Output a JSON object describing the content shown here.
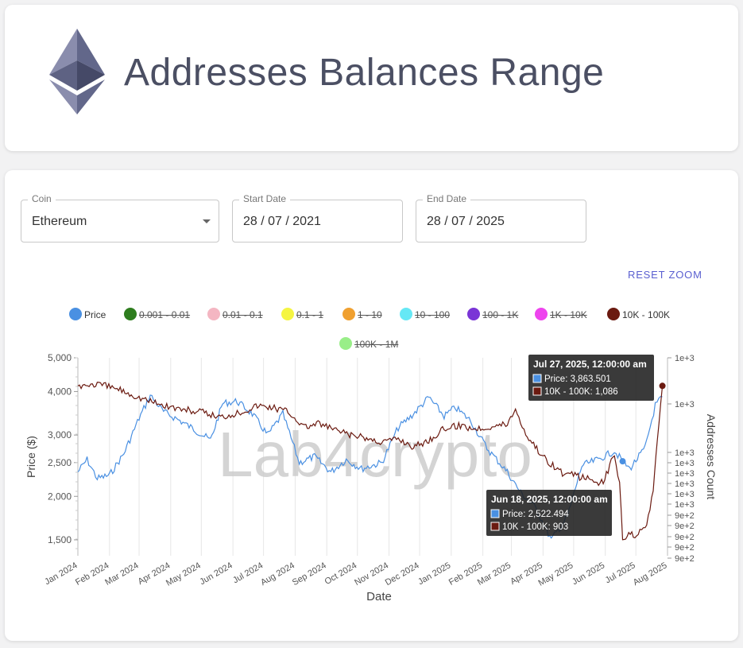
{
  "header": {
    "title": "Addresses Balances Range",
    "logo_icon": "ethereum-logo-icon"
  },
  "filters": {
    "coin": {
      "label": "Coin",
      "value": "Ethereum"
    },
    "start_date": {
      "label": "Start Date",
      "value": "28 / 07 / 2021"
    },
    "end_date": {
      "label": "End Date",
      "value": "28 / 07 / 2025"
    }
  },
  "reset_zoom_label": "RESET ZOOM",
  "watermark": "Lab4crypto",
  "legend": [
    {
      "label": "Price",
      "color": "#4a90e2",
      "active": true
    },
    {
      "label": "0.001 - 0.01",
      "color": "#2e7d1e",
      "active": false
    },
    {
      "label": "0.01 - 0.1",
      "color": "#f4b6c2",
      "active": false
    },
    {
      "label": "0.1 - 1",
      "color": "#f5f542",
      "active": false
    },
    {
      "label": "1 - 10",
      "color": "#f0a030",
      "active": false
    },
    {
      "label": "10 - 100",
      "color": "#66e8f5",
      "active": false
    },
    {
      "label": "100 - 1K",
      "color": "#7a35d6",
      "active": false
    },
    {
      "label": "1K - 10K",
      "color": "#ee44ee",
      "active": false
    },
    {
      "label": "10K - 100K",
      "color": "#6b1a10",
      "active": true
    },
    {
      "label": "100K - 1M",
      "color": "#99ee88",
      "active": false
    }
  ],
  "tooltips": [
    {
      "title": "Jul 27, 2025, 12:00:00 am",
      "price_line": "Price: 3,863.501",
      "series_line": "10K - 100K: 1,086"
    },
    {
      "title": "Jun 18, 2025, 12:00:00 am",
      "price_line": "Price: 2,522.494",
      "series_line": "10K - 100K: 903"
    }
  ],
  "chart_data": {
    "type": "line",
    "xlabel": "Date",
    "ylabel_left": "Price ($)",
    "ylabel_right": "Addresses Count",
    "x_tick_labels": [
      "Jan 2024",
      "Feb 2024",
      "Mar 2024",
      "Apr 2024",
      "May 2024",
      "Jun 2024",
      "Jul 2024",
      "Aug 2024",
      "Sep 2024",
      "Oct 2024",
      "Nov 2024",
      "Dec 2024",
      "Jan 2025",
      "Feb 2025",
      "Mar 2025",
      "Apr 2025",
      "May 2025",
      "Jun 2025",
      "Jul 2025",
      "Aug 2025"
    ],
    "y_left_ticks": [
      "5,000",
      "4,000",
      "3,000",
      "2,500",
      "2,000",
      "1,500"
    ],
    "y_left_tick_values": [
      5000,
      4000,
      3000,
      2500,
      2000,
      1500
    ],
    "y_left_scale": "log",
    "y_left_range": [
      1350,
      5000
    ],
    "y_right_ticks": [
      "1e+3",
      "1e+3",
      "1e+3",
      "1e+3",
      "1e+3",
      "1e+3",
      "1e+3",
      "1e+3",
      "9e+2",
      "9e+2",
      "9e+2",
      "9e+2",
      "9e+2"
    ],
    "y_right_range": [
      880,
      1120
    ],
    "grid": "vertical",
    "series": [
      {
        "name": "Price",
        "color": "#4a90e2",
        "points": [
          [
            "2024-01-01",
            2350
          ],
          [
            "2024-01-10",
            2550
          ],
          [
            "2024-01-20",
            2250
          ],
          [
            "2024-02-01",
            2300
          ],
          [
            "2024-02-15",
            2650
          ],
          [
            "2024-03-01",
            3350
          ],
          [
            "2024-03-12",
            3900
          ],
          [
            "2024-03-25",
            3500
          ],
          [
            "2024-04-10",
            3300
          ],
          [
            "2024-04-25",
            3100
          ],
          [
            "2024-05-10",
            2900
          ],
          [
            "2024-05-22",
            3700
          ],
          [
            "2024-06-05",
            3750
          ],
          [
            "2024-06-20",
            3450
          ],
          [
            "2024-07-05",
            3000
          ],
          [
            "2024-07-20",
            3450
          ],
          [
            "2024-08-05",
            2500
          ],
          [
            "2024-08-20",
            2600
          ],
          [
            "2024-09-05",
            2350
          ],
          [
            "2024-09-20",
            2550
          ],
          [
            "2024-10-05",
            2400
          ],
          [
            "2024-10-25",
            2500
          ],
          [
            "2024-11-10",
            3150
          ],
          [
            "2024-11-25",
            3450
          ],
          [
            "2024-12-10",
            3850
          ],
          [
            "2024-12-25",
            3400
          ],
          [
            "2025-01-05",
            3600
          ],
          [
            "2025-01-20",
            3300
          ],
          [
            "2025-02-05",
            2750
          ],
          [
            "2025-02-25",
            2350
          ],
          [
            "2025-03-10",
            2050
          ],
          [
            "2025-03-25",
            1850
          ],
          [
            "2025-04-09",
            1500
          ],
          [
            "2025-04-25",
            1750
          ],
          [
            "2025-05-09",
            2450
          ],
          [
            "2025-05-25",
            2550
          ],
          [
            "2025-06-10",
            2700
          ],
          [
            "2025-06-18",
            2522
          ],
          [
            "2025-06-25",
            2400
          ],
          [
            "2025-07-10",
            2750
          ],
          [
            "2025-07-20",
            3650
          ],
          [
            "2025-07-27",
            3863
          ]
        ]
      },
      {
        "name": "10K - 100K",
        "color": "#6b1a10",
        "points": [
          [
            "2024-01-01",
            1086
          ],
          [
            "2024-01-20",
            1088
          ],
          [
            "2024-02-10",
            1082
          ],
          [
            "2024-03-01",
            1072
          ],
          [
            "2024-03-20",
            1064
          ],
          [
            "2024-04-10",
            1058
          ],
          [
            "2024-05-01",
            1054
          ],
          [
            "2024-05-20",
            1048
          ],
          [
            "2024-06-10",
            1055
          ],
          [
            "2024-06-25",
            1062
          ],
          [
            "2024-07-10",
            1060
          ],
          [
            "2024-07-25",
            1055
          ],
          [
            "2024-08-10",
            1036
          ],
          [
            "2024-08-25",
            1040
          ],
          [
            "2024-09-10",
            1032
          ],
          [
            "2024-09-25",
            1026
          ],
          [
            "2024-10-10",
            1022
          ],
          [
            "2024-10-25",
            1018
          ],
          [
            "2024-11-10",
            1022
          ],
          [
            "2024-11-25",
            1012
          ],
          [
            "2024-12-10",
            1020
          ],
          [
            "2024-12-25",
            1034
          ],
          [
            "2025-01-10",
            1038
          ],
          [
            "2025-01-25",
            1034
          ],
          [
            "2025-02-10",
            1037
          ],
          [
            "2025-02-25",
            1040
          ],
          [
            "2025-03-05",
            1058
          ],
          [
            "2025-03-15",
            1028
          ],
          [
            "2025-04-01",
            1000
          ],
          [
            "2025-04-20",
            980
          ],
          [
            "2025-05-10",
            975
          ],
          [
            "2025-05-30",
            968
          ],
          [
            "2025-06-10",
            1005
          ],
          [
            "2025-06-15",
            965
          ],
          [
            "2025-06-18",
            903
          ],
          [
            "2025-06-30",
            906
          ],
          [
            "2025-07-10",
            912
          ],
          [
            "2025-07-18",
            955
          ],
          [
            "2025-07-22",
            1020
          ],
          [
            "2025-07-27",
            1086
          ]
        ]
      }
    ]
  }
}
